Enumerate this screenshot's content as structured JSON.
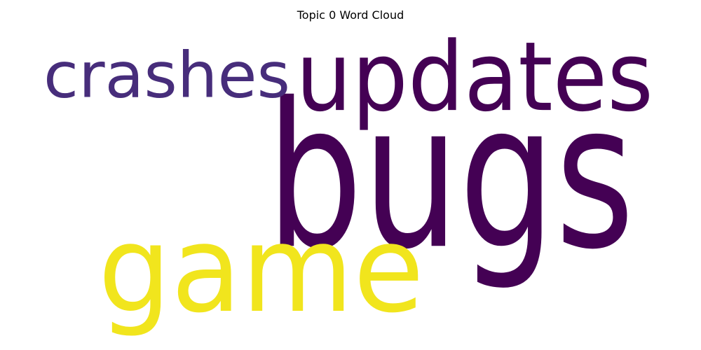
{
  "chart_data": {
    "type": "wordcloud",
    "title": "Topic 0 Word Cloud",
    "words": [
      {
        "text": "bugs",
        "weight": 1.0,
        "color": "#440154"
      },
      {
        "text": "updates",
        "weight": 0.52,
        "color": "#440154"
      },
      {
        "text": "game",
        "weight": 0.74,
        "color": "#f1e51d"
      },
      {
        "text": "crashes",
        "weight": 0.34,
        "color": "#472d7b"
      }
    ]
  }
}
